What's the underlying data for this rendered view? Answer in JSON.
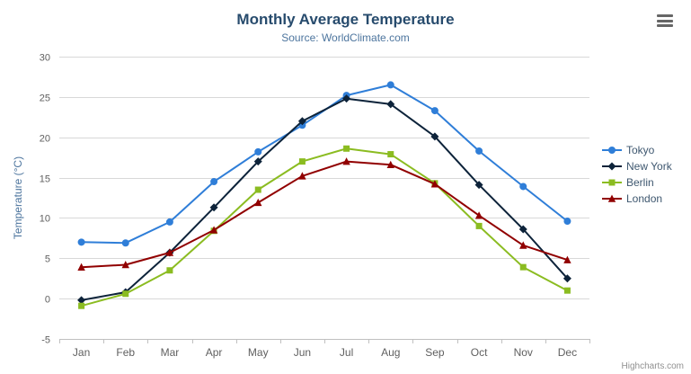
{
  "header": {
    "title": "Monthly Average Temperature",
    "subtitle": "Source: WorldClimate.com"
  },
  "icons": {
    "export_menu": "hamburger-icon"
  },
  "credits": "Highcharts.com",
  "chart_data": {
    "type": "line",
    "title": "Monthly Average Temperature",
    "subtitle": "Source: WorldClimate.com",
    "categories": [
      "Jan",
      "Feb",
      "Mar",
      "Apr",
      "May",
      "Jun",
      "Jul",
      "Aug",
      "Sep",
      "Oct",
      "Nov",
      "Dec"
    ],
    "xlabel": "",
    "ylabel": "Temperature (°C)",
    "ylim": [
      -5,
      30
    ],
    "ytick_interval": 5,
    "grid": true,
    "legend_position": "right",
    "series": [
      {
        "name": "Tokyo",
        "color": "#2f7ed8",
        "marker": "circle",
        "values": [
          7.0,
          6.9,
          9.5,
          14.5,
          18.2,
          21.5,
          25.2,
          26.5,
          23.3,
          18.3,
          13.9,
          9.6
        ]
      },
      {
        "name": "New York",
        "color": "#0d233a",
        "marker": "diamond",
        "values": [
          -0.2,
          0.8,
          5.7,
          11.3,
          17.0,
          22.0,
          24.8,
          24.1,
          20.1,
          14.1,
          8.6,
          2.5
        ]
      },
      {
        "name": "Berlin",
        "color": "#8bbc21",
        "marker": "square",
        "values": [
          -0.9,
          0.6,
          3.5,
          8.4,
          13.5,
          17.0,
          18.6,
          17.9,
          14.3,
          9.0,
          3.9,
          1.0
        ]
      },
      {
        "name": "London",
        "color": "#910000",
        "marker": "triangle",
        "values": [
          3.9,
          4.2,
          5.7,
          8.5,
          11.9,
          15.2,
          17.0,
          16.6,
          14.2,
          10.3,
          6.6,
          4.8
        ]
      }
    ]
  }
}
